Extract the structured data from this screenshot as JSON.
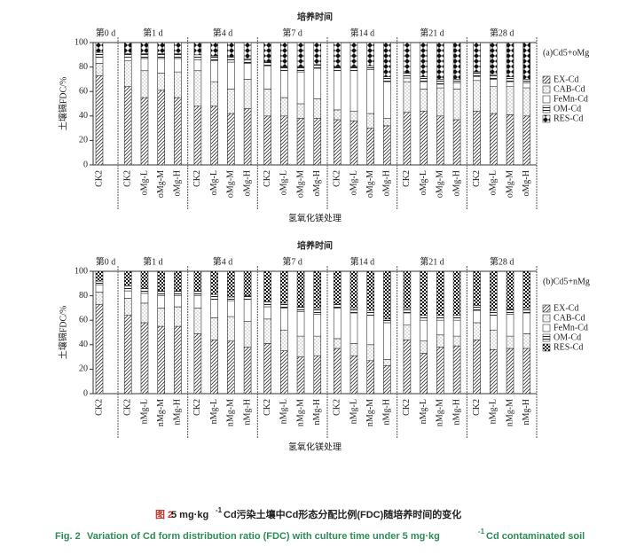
{
  "chart_data": [
    {
      "type": "stacked_bar",
      "title": "培养时间",
      "panel_label": "(a)Cd5+oMg",
      "y_label": "土壤镉FDC/%",
      "x_label": "氢氧化镁处理",
      "groups": [
        {
          "name": "第0 d",
          "categories": [
            "CK2"
          ]
        },
        {
          "name": "第1 d",
          "categories": [
            "CK2",
            "oMg-L",
            "oMg-M",
            "oMg-H"
          ]
        },
        {
          "name": "第4 d",
          "categories": [
            "CK2",
            "oMg-L",
            "oMg-M",
            "oMg-H"
          ]
        },
        {
          "name": "第7 d",
          "categories": [
            "CK2",
            "oMg-L",
            "oMg-M",
            "oMg-H"
          ]
        },
        {
          "name": "第14 d",
          "categories": [
            "CK2",
            "oMg-L",
            "oMg-M",
            "oMg-H"
          ]
        },
        {
          "name": "第21 d",
          "categories": [
            "CK2",
            "oMg-L",
            "oMg-M",
            "oMg-H"
          ]
        },
        {
          "name": "第28 d",
          "categories": [
            "CK2",
            "oMg-L",
            "oMg-M",
            "oMg-H"
          ]
        }
      ],
      "series": [
        {
          "name": "EX-Cd",
          "pattern": "hatch",
          "values": [
            73,
            64,
            55,
            61,
            55,
            48,
            48,
            42,
            46,
            40,
            40,
            38,
            38,
            37,
            36,
            30,
            32,
            43,
            44,
            40,
            37,
            44,
            42,
            41,
            40
          ]
        },
        {
          "name": "CAB-Cd",
          "pattern": "dots",
          "values": [
            10,
            21,
            22,
            14,
            21,
            29,
            20,
            20,
            24,
            22,
            15,
            12,
            16,
            8,
            8,
            12,
            6,
            25,
            18,
            23,
            25,
            25,
            22,
            23,
            23
          ]
        },
        {
          "name": "FeMn-Cd",
          "pattern": "blank",
          "values": [
            5,
            3,
            10,
            12,
            11,
            9,
            17,
            22,
            13,
            19,
            22,
            26,
            25,
            32,
            33,
            36,
            30,
            3,
            6,
            3,
            5,
            3,
            6,
            4,
            4
          ]
        },
        {
          "name": "OM-Cd",
          "pattern": "lines",
          "values": [
            4,
            3,
            4,
            4,
            4,
            4,
            4,
            4,
            4,
            3,
            3,
            4,
            3,
            3,
            3,
            3,
            4,
            4,
            4,
            4,
            3,
            4,
            4,
            4,
            3
          ]
        },
        {
          "name": "RES-Cd",
          "pattern": "diamond",
          "values": [
            8,
            9,
            9,
            9,
            9,
            10,
            11,
            12,
            13,
            16,
            20,
            20,
            18,
            20,
            20,
            19,
            28,
            25,
            28,
            30,
            30,
            24,
            26,
            28,
            30
          ]
        }
      ],
      "ylim": [
        0,
        100
      ],
      "yticks": [
        0,
        20,
        40,
        60,
        80,
        100
      ],
      "legend": "right"
    },
    {
      "type": "stacked_bar",
      "title": "培养时间",
      "panel_label": "(b)Cd5+nMg",
      "y_label": "土壤镉FDC/%",
      "x_label": "氢氧化镁处理",
      "groups": [
        {
          "name": "第0 d",
          "categories": [
            "CK2"
          ]
        },
        {
          "name": "第1 d",
          "categories": [
            "CK2",
            "nMg-L",
            "nMg-M",
            "nMg-H"
          ]
        },
        {
          "name": "第4 d",
          "categories": [
            "CK2",
            "nMg-L",
            "nMg-M",
            "nMg-H"
          ]
        },
        {
          "name": "第7 d",
          "categories": [
            "CK2",
            "nMg-L",
            "nMg-M",
            "nMg-H"
          ]
        },
        {
          "name": "第14 d",
          "categories": [
            "CK2",
            "nMg-L",
            "nMg-M",
            "nMg-H"
          ]
        },
        {
          "name": "第21 d",
          "categories": [
            "CK2",
            "nMg-L",
            "nMg-M",
            "nMg-H"
          ]
        },
        {
          "name": "第28 d",
          "categories": [
            "CK2",
            "nMg-L",
            "nMg-M",
            "nMg-H"
          ]
        }
      ],
      "series": [
        {
          "name": "EX-Cd",
          "pattern": "hatch",
          "values": [
            73,
            64,
            58,
            55,
            55,
            49,
            44,
            43,
            38,
            41,
            35,
            30,
            31,
            37,
            31,
            27,
            23,
            44,
            33,
            38,
            39,
            44,
            36,
            37,
            37
          ]
        },
        {
          "name": "CAB-Cd",
          "pattern": "dots",
          "values": [
            10,
            14,
            16,
            15,
            16,
            21,
            18,
            20,
            21,
            20,
            17,
            17,
            16,
            8,
            10,
            13,
            5,
            12,
            10,
            10,
            8,
            14,
            16,
            10,
            12
          ]
        },
        {
          "name": "FeMn-Cd",
          "pattern": "blank",
          "values": [
            6,
            6,
            8,
            10,
            9,
            10,
            15,
            13,
            18,
            10,
            18,
            20,
            18,
            25,
            25,
            24,
            30,
            10,
            17,
            12,
            13,
            10,
            12,
            18,
            17
          ]
        },
        {
          "name": "OM-Cd",
          "pattern": "lines",
          "values": [
            3,
            4,
            4,
            4,
            4,
            4,
            4,
            3,
            3,
            4,
            4,
            4,
            5,
            3,
            4,
            4,
            3,
            4,
            4,
            4,
            4,
            4,
            4,
            4,
            4
          ]
        },
        {
          "name": "RES-Cd",
          "pattern": "checker",
          "values": [
            8,
            12,
            14,
            16,
            16,
            16,
            19,
            21,
            20,
            25,
            26,
            29,
            30,
            27,
            30,
            32,
            39,
            30,
            36,
            36,
            36,
            28,
            32,
            31,
            30
          ]
        }
      ],
      "ylim": [
        0,
        100
      ],
      "yticks": [
        0,
        20,
        40,
        60,
        80,
        100
      ],
      "legend": "right"
    }
  ],
  "caption": {
    "cn": [
      "图 2",
      "5 mg·kg",
      "-1",
      " Cd污染土壤中Cd形态分配比例(FDC)随培养时间的变化"
    ],
    "en": [
      "Fig. 2",
      " Variation of Cd form distribution ratio (FDC) with culture time under 5 mg·kg",
      "-1",
      " Cd contaminated soil"
    ]
  }
}
